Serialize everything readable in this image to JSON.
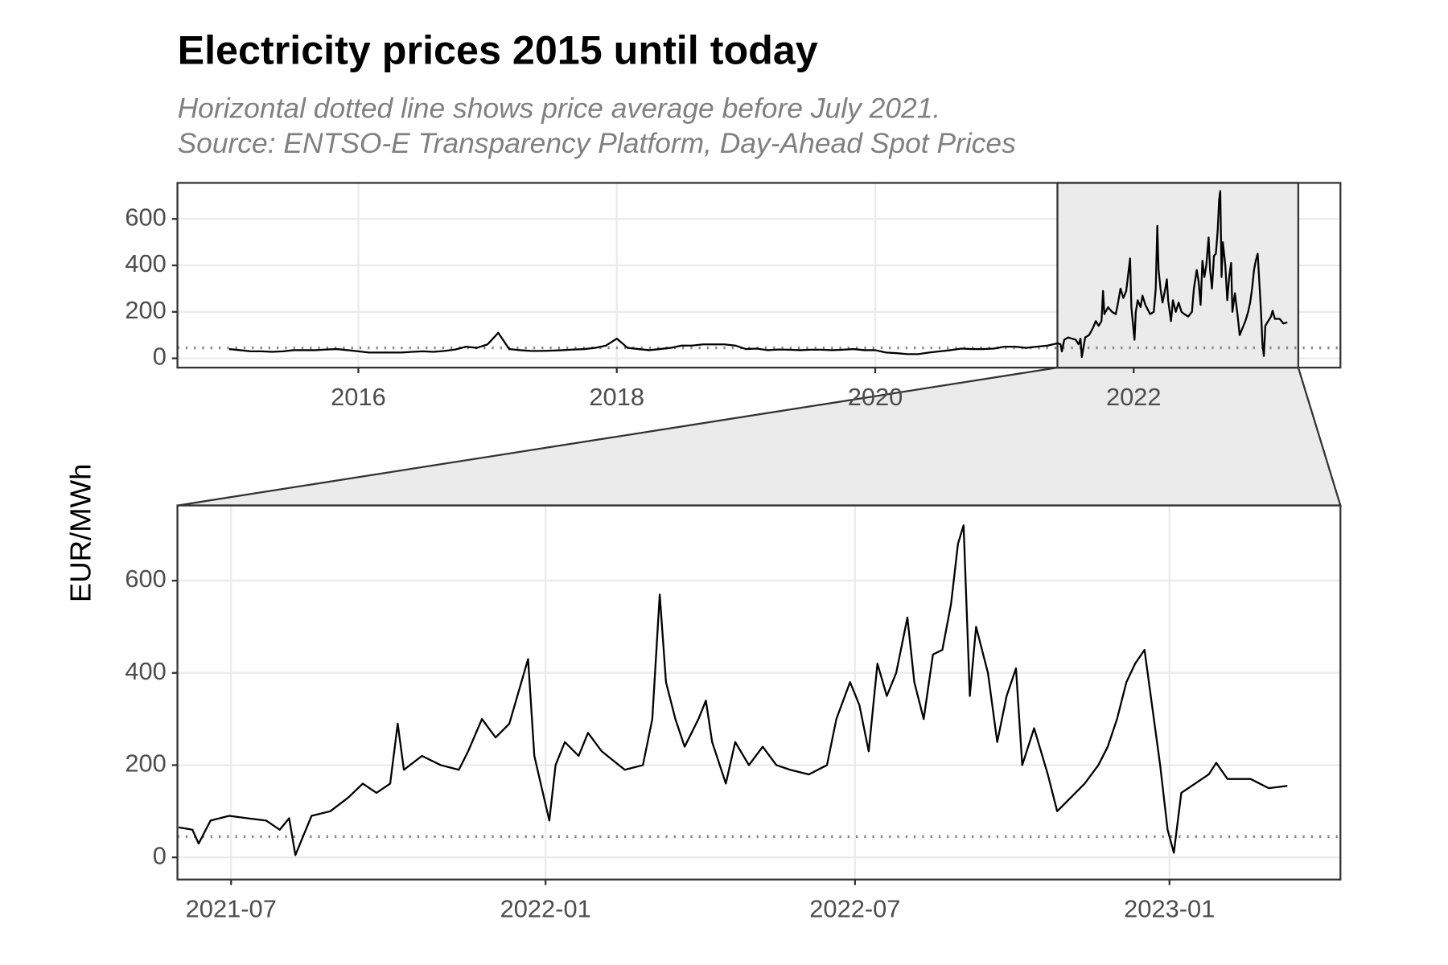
{
  "chart_data": [
    {
      "type": "line",
      "title": "Electricity prices 2015 until today",
      "subtitle": [
        "Horizontal dotted line shows price average before July 2021.",
        "Source: ENTSO-E Transparency Platform, Day-Ahead Spot Prices"
      ],
      "xlim": [
        2014.6,
        2023.6
      ],
      "xticks": [
        2016,
        2018,
        2020,
        2022
      ],
      "ylim": [
        -40,
        755
      ],
      "yticks": [
        0,
        200,
        400,
        600
      ],
      "grid": true,
      "reference_line": 45,
      "color": "#000000",
      "x": [
        2015.0,
        2015.083,
        2015.167,
        2015.25,
        2015.333,
        2015.417,
        2015.5,
        2015.583,
        2015.667,
        2015.75,
        2015.833,
        2015.917,
        2016.0,
        2016.083,
        2016.167,
        2016.25,
        2016.333,
        2016.417,
        2016.5,
        2016.583,
        2016.667,
        2016.75,
        2016.833,
        2016.917,
        2017.0,
        2017.083,
        2017.167,
        2017.25,
        2017.333,
        2017.417,
        2017.5,
        2017.583,
        2017.667,
        2017.75,
        2017.833,
        2017.917,
        2018.0,
        2018.083,
        2018.167,
        2018.25,
        2018.333,
        2018.417,
        2018.5,
        2018.583,
        2018.667,
        2018.75,
        2018.833,
        2018.917,
        2019.0,
        2019.083,
        2019.167,
        2019.25,
        2019.333,
        2019.417,
        2019.5,
        2019.583,
        2019.667,
        2019.75,
        2019.833,
        2019.917,
        2020.0,
        2020.083,
        2020.167,
        2020.25,
        2020.333,
        2020.417,
        2020.5,
        2020.583,
        2020.667,
        2020.75,
        2020.833,
        2020.917,
        2021.0,
        2021.083,
        2021.167,
        2021.25,
        2021.333,
        2021.412,
        2021.434,
        2021.444,
        2021.463,
        2021.493,
        2021.522,
        2021.552,
        2021.574,
        2021.589,
        2021.599,
        2021.625,
        2021.655,
        2021.684,
        2021.707,
        2021.729,
        2021.751,
        2021.763,
        2021.773,
        2021.802,
        2021.832,
        2021.861,
        2021.876,
        2021.898,
        2021.92,
        2021.942,
        2021.957,
        2021.972,
        2021.982,
        2021.994,
        2022.006,
        2022.016,
        2022.031,
        2022.053,
        2022.068,
        2022.09,
        2022.127,
        2022.156,
        2022.171,
        2022.183,
        2022.193,
        2022.208,
        2022.223,
        2022.245,
        2022.257,
        2022.267,
        2022.289,
        2022.304,
        2022.326,
        2022.348,
        2022.37,
        2022.392,
        2022.422,
        2022.451,
        2022.466,
        2022.488,
        2022.503,
        2022.518,
        2022.532,
        2022.547,
        2022.562,
        2022.58,
        2022.591,
        2022.606,
        2022.621,
        2022.636,
        2022.65,
        2022.661,
        2022.67,
        2022.68,
        2022.69,
        2022.709,
        2022.724,
        2022.739,
        2022.754,
        2022.764,
        2022.783,
        2022.805,
        2022.82,
        2022.842,
        2022.864,
        2022.886,
        2022.901,
        2022.916,
        2022.931,
        2022.945,
        2022.96,
        2022.975,
        2022.985,
        2022.997,
        2023.007,
        2023.019,
        2023.041,
        2023.063,
        2023.075,
        2023.093,
        2023.13,
        2023.159,
        2023.189
      ],
      "values": [
        40,
        35,
        30,
        30,
        28,
        30,
        35,
        35,
        35,
        38,
        40,
        35,
        30,
        25,
        25,
        25,
        25,
        28,
        30,
        28,
        32,
        38,
        50,
        45,
        60,
        110,
        40,
        35,
        32,
        32,
        33,
        35,
        38,
        40,
        45,
        55,
        85,
        45,
        40,
        35,
        40,
        45,
        55,
        55,
        60,
        60,
        60,
        55,
        40,
        42,
        35,
        38,
        37,
        35,
        37,
        37,
        35,
        37,
        40,
        35,
        35,
        25,
        22,
        18,
        18,
        25,
        30,
        35,
        42,
        40,
        40,
        42,
        50,
        50,
        45,
        50,
        55,
        65,
        60,
        30,
        80,
        90,
        85,
        80,
        60,
        85,
        5,
        90,
        100,
        130,
        160,
        140,
        160,
        290,
        190,
        220,
        200,
        190,
        230,
        300,
        260,
        290,
        360,
        430,
        220,
        150,
        80,
        200,
        250,
        220,
        270,
        230,
        190,
        200,
        300,
        570,
        380,
        300,
        240,
        300,
        340,
        250,
        160,
        250,
        200,
        240,
        200,
        190,
        180,
        200,
        300,
        380,
        330,
        230,
        420,
        350,
        400,
        520,
        380,
        300,
        440,
        450,
        550,
        680,
        720,
        350,
        500,
        400,
        250,
        350,
        410,
        200,
        280,
        180,
        100,
        130,
        160,
        200,
        240,
        300,
        380,
        420,
        450,
        300,
        200,
        60,
        10,
        140,
        160,
        180,
        205,
        170,
        170,
        150,
        155
      ]
    },
    {
      "type": "line",
      "ylabel": "EUR/MWh",
      "xlim": [
        2021.41,
        2023.274
      ],
      "xticks": [
        {
          "value": 2021.496,
          "label": "2021-07"
        },
        {
          "value": 2022.0,
          "label": "2022-01"
        },
        {
          "value": 2022.496,
          "label": "2022-07"
        },
        {
          "value": 2023.0,
          "label": "2023-01"
        }
      ],
      "ylim": [
        -48,
        763
      ],
      "yticks": [
        0,
        200,
        400,
        600
      ],
      "grid": true,
      "reference_line": 45,
      "color": "#000000",
      "x": [
        2021.412,
        2021.434,
        2021.444,
        2021.463,
        2021.493,
        2021.522,
        2021.552,
        2021.574,
        2021.589,
        2021.599,
        2021.625,
        2021.655,
        2021.684,
        2021.707,
        2021.729,
        2021.751,
        2021.763,
        2021.773,
        2021.802,
        2021.832,
        2021.861,
        2021.876,
        2021.898,
        2021.92,
        2021.942,
        2021.957,
        2021.972,
        2021.982,
        2021.994,
        2022.006,
        2022.016,
        2022.031,
        2022.053,
        2022.068,
        2022.09,
        2022.127,
        2022.156,
        2022.171,
        2022.183,
        2022.193,
        2022.208,
        2022.223,
        2022.245,
        2022.257,
        2022.267,
        2022.289,
        2022.304,
        2022.326,
        2022.348,
        2022.37,
        2022.392,
        2022.422,
        2022.451,
        2022.466,
        2022.488,
        2022.503,
        2022.518,
        2022.532,
        2022.547,
        2022.562,
        2022.58,
        2022.591,
        2022.606,
        2022.621,
        2022.636,
        2022.65,
        2022.661,
        2022.67,
        2022.68,
        2022.69,
        2022.709,
        2022.724,
        2022.739,
        2022.754,
        2022.764,
        2022.783,
        2022.805,
        2022.82,
        2022.842,
        2022.864,
        2022.886,
        2022.901,
        2022.916,
        2022.931,
        2022.945,
        2022.96,
        2022.975,
        2022.985,
        2022.997,
        2023.007,
        2023.019,
        2023.041,
        2023.063,
        2023.075,
        2023.093,
        2023.13,
        2023.159,
        2023.189
      ],
      "values": [
        65,
        60,
        30,
        80,
        90,
        85,
        80,
        60,
        85,
        5,
        90,
        100,
        130,
        160,
        140,
        160,
        290,
        190,
        220,
        200,
        190,
        230,
        300,
        260,
        290,
        360,
        430,
        220,
        150,
        80,
        200,
        250,
        220,
        270,
        230,
        190,
        200,
        300,
        570,
        380,
        300,
        240,
        300,
        340,
        250,
        160,
        250,
        200,
        240,
        200,
        190,
        180,
        200,
        300,
        380,
        330,
        230,
        420,
        350,
        400,
        520,
        380,
        300,
        440,
        450,
        550,
        680,
        720,
        350,
        500,
        400,
        250,
        350,
        410,
        200,
        280,
        180,
        100,
        130,
        160,
        200,
        240,
        300,
        380,
        420,
        450,
        300,
        200,
        60,
        10,
        140,
        160,
        180,
        205,
        170,
        170,
        150,
        155
      ]
    }
  ]
}
